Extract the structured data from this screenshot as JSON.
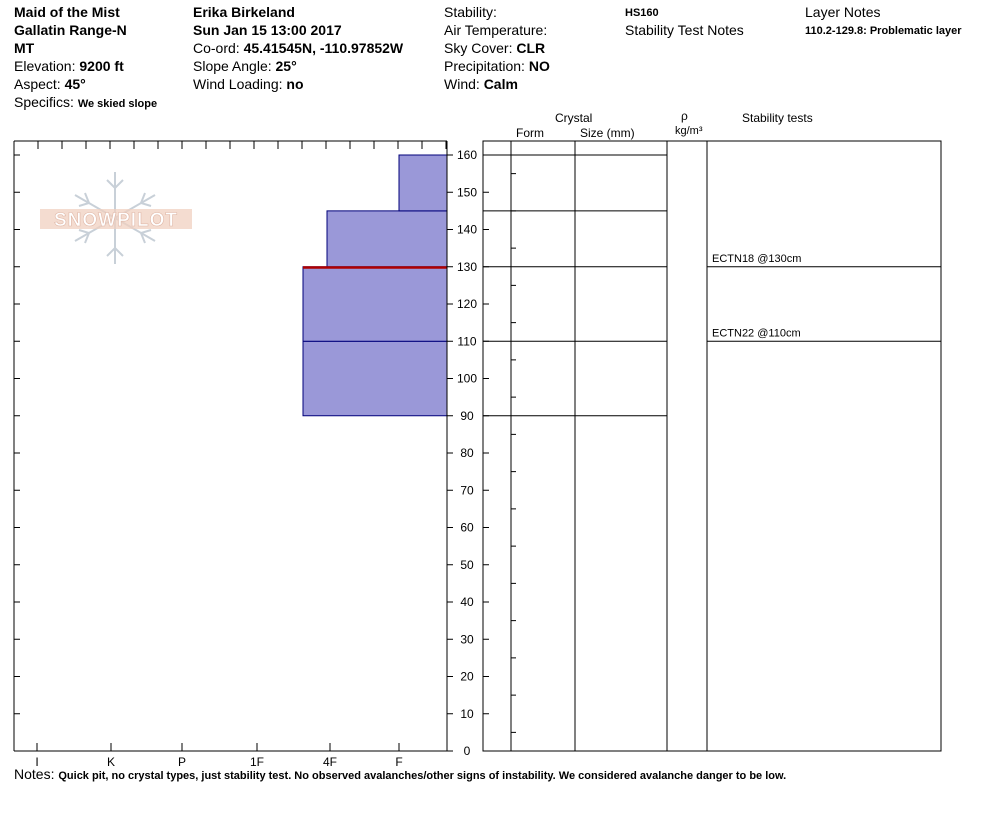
{
  "header": {
    "col1": {
      "location": "Maid of the Mist",
      "range": "Gallatin Range-N",
      "state": "MT",
      "elevation_label": "Elevation:",
      "elevation_value": "9200 ft",
      "aspect_label": "Aspect:",
      "aspect_value": "45°",
      "specifics_label": "Specifics:",
      "specifics_value": "We skied slope"
    },
    "col2": {
      "observer": "Erika Birkeland",
      "datetime": "Sun Jan 15 13:00 2017",
      "coord_label": "Co-ord:",
      "coord_value": "45.41545N, -110.97852W",
      "slope_label": "Slope Angle:",
      "slope_value": "25°",
      "wind_loading_label": "Wind Loading:",
      "wind_loading_value": "no"
    },
    "col3": {
      "stability_label": "Stability:",
      "air_temp_label": "Air Temperature:",
      "sky_label": "Sky Cover:",
      "sky_value": "CLR",
      "precip_label": "Precipitation:",
      "precip_value": "NO",
      "wind_label": "Wind:",
      "wind_value": "Calm"
    },
    "col4": {
      "hs": "HS160",
      "stability_notes": "Stability Test Notes"
    },
    "col5": {
      "layer_notes": "Layer Notes",
      "layer_note_1": "110.2-129.8: Problematic layer"
    }
  },
  "logo": {
    "text": "SNOWPILOT"
  },
  "columns": {
    "crystal": "Crystal",
    "form": "Form",
    "size": "Size (mm)",
    "rho": "ρ",
    "density_unit": "kg/m³",
    "stability_tests": "Stability tests"
  },
  "notes": {
    "label": "Notes:",
    "text": "Quick pit, no crystal types, just stability test. No observed avalanches/other signs of instability. We considered avalanche danger to be low."
  },
  "colors": {
    "layer_fill": "#9a98d8",
    "layer_stroke": "#00007a",
    "problem_line": "#b00000"
  },
  "chart_data": {
    "type": "bar",
    "title": "",
    "y_axis": {
      "unit": "cm",
      "ylim": [
        0,
        160
      ],
      "ticks": [
        0,
        10,
        20,
        30,
        40,
        50,
        60,
        70,
        80,
        90,
        100,
        110,
        120,
        130,
        140,
        150,
        160
      ]
    },
    "x_axis": {
      "labels": [
        "I",
        "K",
        "P",
        "1F",
        "4F",
        "F"
      ]
    },
    "layers": [
      {
        "bottom": 90,
        "top": 110,
        "hardness": "4F+"
      },
      {
        "bottom": 110,
        "top": 130,
        "hardness": "4F+"
      },
      {
        "bottom": 130,
        "top": 145,
        "hardness": "4F"
      },
      {
        "bottom": 145,
        "top": 160,
        "hardness": "F"
      }
    ],
    "problematic_layer": {
      "bottom": 110.2,
      "top": 129.8
    },
    "grid_layer_boundaries": [
      90,
      110,
      130,
      145,
      160
    ],
    "stability_tests": [
      {
        "label": "ECTN18 @130cm",
        "depth": 130
      },
      {
        "label": "ECTN22 @110cm",
        "depth": 110
      }
    ]
  }
}
